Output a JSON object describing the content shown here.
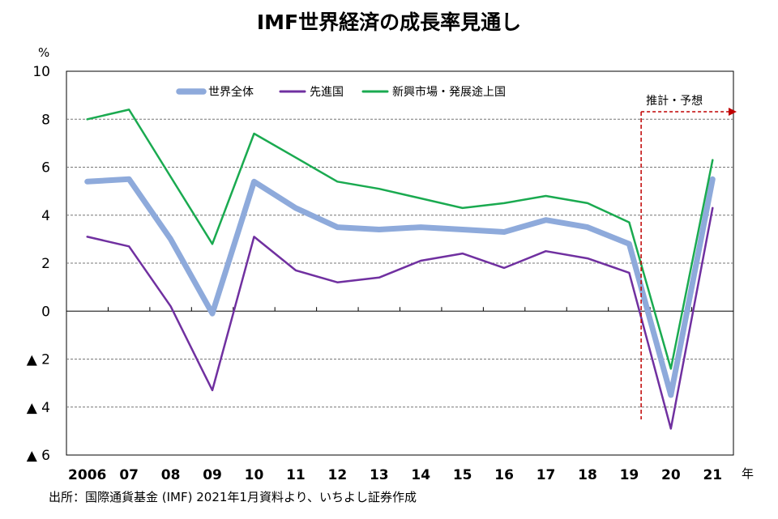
{
  "page": {
    "title": "IMF世界経済の成長率見通し",
    "source": "出所：国際通貨基金 (IMF) 2021年1月資料より、いちよし証券作成"
  },
  "chart_data": {
    "type": "line",
    "title": "IMF世界経済の成長率見通し",
    "ylabel": "%",
    "xlabel": "年",
    "ylim": [
      -6,
      10
    ],
    "yticks": [
      10,
      8,
      6,
      4,
      2,
      0,
      -2,
      -4,
      -6
    ],
    "ytick_labels": [
      "10",
      "8",
      "6",
      "4",
      "2",
      "0",
      "▲ 2",
      "▲ 4",
      "▲ 6"
    ],
    "categories": [
      "2006",
      "07",
      "08",
      "09",
      "10",
      "11",
      "12",
      "13",
      "14",
      "15",
      "16",
      "17",
      "18",
      "19",
      "20",
      "21"
    ],
    "series": [
      {
        "name": "世界全体",
        "color": "#8eaadb",
        "values": [
          5.4,
          5.5,
          3.0,
          -0.1,
          5.4,
          4.3,
          3.5,
          3.4,
          3.5,
          3.4,
          3.3,
          3.8,
          3.5,
          2.8,
          -3.5,
          5.5
        ]
      },
      {
        "name": "先進国",
        "color": "#7030a0",
        "values": [
          3.1,
          2.7,
          0.2,
          -3.3,
          3.1,
          1.7,
          1.2,
          1.4,
          2.1,
          2.4,
          1.8,
          2.5,
          2.2,
          1.6,
          -4.9,
          4.3
        ]
      },
      {
        "name": "新興市場・発展途上国",
        "color": "#1aaa50",
        "values": [
          8.0,
          8.4,
          5.6,
          2.8,
          7.4,
          6.4,
          5.4,
          5.1,
          4.7,
          4.3,
          4.5,
          4.8,
          4.5,
          3.7,
          -2.4,
          6.3
        ]
      }
    ],
    "forecast": {
      "label": "推計・予想",
      "start_between": [
        "19",
        "20"
      ],
      "color": "#c00000"
    },
    "legend_position": "top"
  }
}
